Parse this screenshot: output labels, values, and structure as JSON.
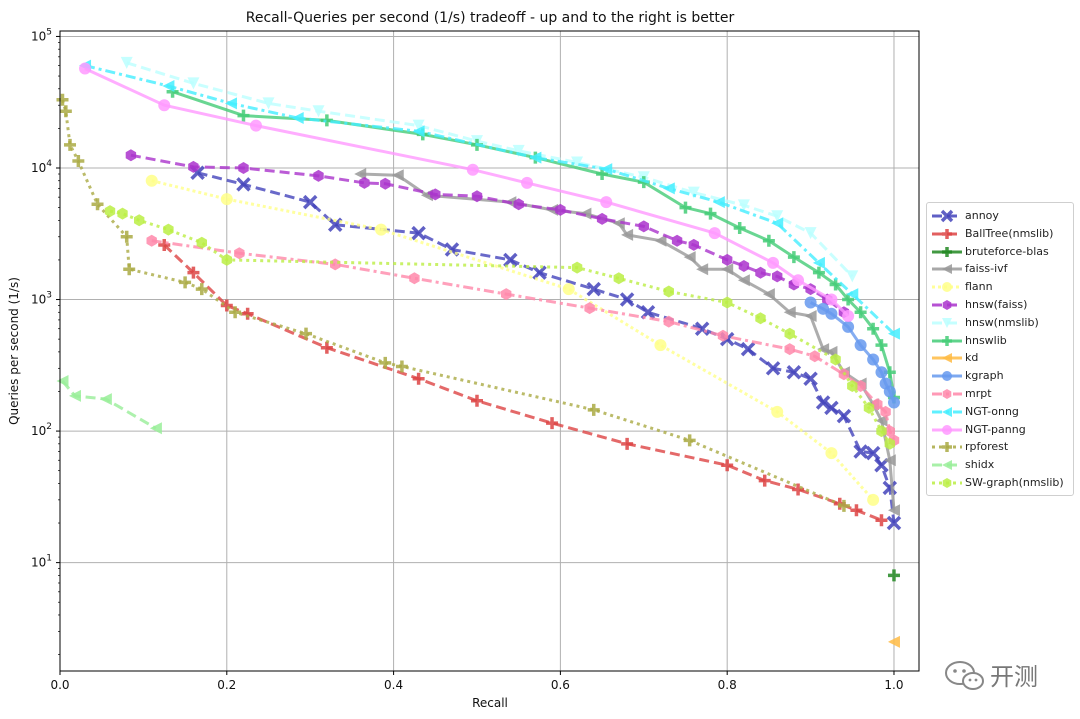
{
  "chart_data": {
    "type": "line",
    "title": "Recall-Queries per second (1/s) tradeoff - up and to the right is better",
    "xlabel": "Recall",
    "ylabel": "Queries per second (1/s)",
    "xlim": [
      0,
      1.03
    ],
    "ylim": [
      1.5,
      110000
    ],
    "yscale": "log",
    "grid": true,
    "legend_position": "right",
    "x_ticks": [
      "0.0",
      "0.2",
      "0.4",
      "0.6",
      "0.8",
      "1.0"
    ],
    "y_ticks": [
      {
        "base": "10",
        "exp": "1",
        "value": 10
      },
      {
        "base": "10",
        "exp": "2",
        "value": 100
      },
      {
        "base": "10",
        "exp": "3",
        "value": 1000
      },
      {
        "base": "10",
        "exp": "4",
        "value": 10000
      },
      {
        "base": "10",
        "exp": "5",
        "value": 100000
      }
    ],
    "series": [
      {
        "name": "annoy",
        "color": "#4444bb",
        "dash": "10,5",
        "marker": "x",
        "x": [
          0.165,
          0.22,
          0.3,
          0.33,
          0.43,
          0.47,
          0.54,
          0.575,
          0.64,
          0.68,
          0.705,
          0.77,
          0.8,
          0.825,
          0.855,
          0.88,
          0.9,
          0.915,
          0.925,
          0.94,
          0.96,
          0.975,
          0.985,
          0.995,
          1.0
        ],
        "y": [
          9200,
          7500,
          5500,
          3700,
          3200,
          2400,
          2000,
          1600,
          1200,
          1000,
          800,
          600,
          500,
          420,
          300,
          280,
          250,
          165,
          150,
          130,
          70,
          68,
          55,
          37,
          20
        ]
      },
      {
        "name": "BallTree(nmslib)",
        "color": "#dd4444",
        "dash": "10,5",
        "marker": "plus",
        "x": [
          0.125,
          0.16,
          0.2,
          0.225,
          0.32,
          0.43,
          0.5,
          0.59,
          0.68,
          0.8,
          0.845,
          0.885,
          0.935,
          0.955,
          0.985
        ],
        "y": [
          2600,
          1600,
          900,
          780,
          430,
          250,
          170,
          115,
          80,
          55,
          42,
          36,
          28,
          25,
          21
        ]
      },
      {
        "name": "bruteforce-blas",
        "color": "#228822",
        "dash": "",
        "marker": "plus",
        "x": [
          1.0
        ],
        "y": [
          8
        ]
      },
      {
        "name": "faiss-ivf",
        "color": "#999999",
        "dash": "",
        "marker": "tri-left",
        "x": [
          0.36,
          0.405,
          0.44,
          0.54,
          0.59,
          0.63,
          0.67,
          0.68,
          0.72,
          0.755,
          0.77,
          0.8,
          0.82,
          0.85,
          0.875,
          0.9,
          0.915,
          0.925,
          0.94,
          0.96,
          0.975,
          0.985,
          0.995,
          1.0
        ],
        "y": [
          9000,
          8800,
          6200,
          5500,
          4800,
          4500,
          3800,
          3100,
          2800,
          2100,
          1700,
          1700,
          1400,
          1100,
          800,
          750,
          420,
          400,
          280,
          230,
          160,
          120,
          60,
          25
        ]
      },
      {
        "name": "flann",
        "color": "#ffff88",
        "dash": "3,3",
        "marker": "circle",
        "x": [
          0.11,
          0.2,
          0.385,
          0.61,
          0.72,
          0.86,
          0.925,
          0.975
        ],
        "y": [
          8000,
          5800,
          3400,
          1200,
          450,
          140,
          68,
          30
        ]
      },
      {
        "name": "hnsw(faiss)",
        "color": "#aa33cc",
        "dash": "10,5",
        "marker": "hex",
        "x": [
          0.085,
          0.16,
          0.22,
          0.31,
          0.365,
          0.39,
          0.45,
          0.5,
          0.55,
          0.6,
          0.65,
          0.7,
          0.74,
          0.76,
          0.8,
          0.82,
          0.84,
          0.86,
          0.88,
          0.9,
          0.92,
          0.94
        ],
        "y": [
          12500,
          10200,
          10000,
          8700,
          7700,
          7600,
          6300,
          6100,
          5300,
          4800,
          4100,
          3600,
          2800,
          2600,
          2000,
          1800,
          1600,
          1500,
          1300,
          1200,
          1000,
          800
        ]
      },
      {
        "name": "hnsw(nmslib)",
        "color": "#bbffff",
        "dash": "10,5",
        "marker": "tri-down",
        "x": [
          0.08,
          0.16,
          0.25,
          0.31,
          0.43,
          0.5,
          0.55,
          0.62,
          0.7,
          0.76,
          0.82,
          0.86,
          0.9,
          0.95
        ],
        "y": [
          63000,
          44000,
          31000,
          27000,
          21000,
          16000,
          13500,
          11000,
          8500,
          6500,
          5200,
          4300,
          3200,
          1500
        ]
      },
      {
        "name": "hnswlib",
        "color": "#44cc77",
        "dash": "",
        "marker": "plus",
        "x": [
          0.135,
          0.22,
          0.32,
          0.435,
          0.5,
          0.57,
          0.65,
          0.7,
          0.75,
          0.78,
          0.815,
          0.85,
          0.88,
          0.91,
          0.93,
          0.945,
          0.96,
          0.975,
          0.985,
          0.995,
          1.0
        ],
        "y": [
          38000,
          25000,
          23000,
          18000,
          15000,
          12000,
          9000,
          7800,
          5000,
          4500,
          3500,
          2800,
          2100,
          1600,
          1300,
          1000,
          800,
          600,
          450,
          280,
          180
        ]
      },
      {
        "name": "kd",
        "color": "#ffbb44",
        "dash": "",
        "marker": "tri-left",
        "x": [
          1.0
        ],
        "y": [
          2.5
        ]
      },
      {
        "name": "kgraph",
        "color": "#6699ee",
        "dash": "",
        "marker": "circle",
        "x": [
          0.9,
          0.915,
          0.925,
          0.945,
          0.96,
          0.975,
          0.985,
          0.99,
          0.995,
          1.0
        ],
        "y": [
          950,
          850,
          780,
          620,
          450,
          350,
          280,
          230,
          200,
          165
        ]
      },
      {
        "name": "mrpt",
        "color": "#ff88aa",
        "dash": "10,4,3,4",
        "marker": "hex",
        "x": [
          0.11,
          0.215,
          0.33,
          0.425,
          0.535,
          0.635,
          0.73,
          0.795,
          0.875,
          0.905,
          0.94,
          0.96,
          0.98,
          0.99,
          0.995,
          1.0
        ],
        "y": [
          2800,
          2250,
          1850,
          1450,
          1100,
          860,
          680,
          530,
          420,
          370,
          270,
          220,
          160,
          140,
          100,
          85
        ]
      },
      {
        "name": "NGT-onng",
        "color": "#44eeff",
        "dash": "10,4,3,4",
        "marker": "tri-left",
        "x": [
          0.03,
          0.13,
          0.205,
          0.285,
          0.43,
          0.57,
          0.655,
          0.73,
          0.79,
          0.86,
          0.91,
          0.95,
          1.0
        ],
        "y": [
          60000,
          42000,
          31000,
          24000,
          19000,
          12000,
          9800,
          7000,
          5500,
          3800,
          1900,
          1100,
          550
        ]
      },
      {
        "name": "NGT-panng",
        "color": "#ff99ff",
        "dash": "",
        "marker": "circle",
        "x": [
          0.03,
          0.125,
          0.235,
          0.495,
          0.56,
          0.655,
          0.785,
          0.855,
          0.885,
          0.925,
          0.945
        ],
        "y": [
          57000,
          30000,
          21000,
          9700,
          7700,
          5500,
          3200,
          1900,
          1400,
          1000,
          750
        ]
      },
      {
        "name": "rpforest",
        "color": "#aaaa44",
        "dash": "3,4",
        "marker": "plus",
        "x": [
          0.003,
          0.007,
          0.012,
          0.022,
          0.045,
          0.08,
          0.083,
          0.15,
          0.17,
          0.21,
          0.295,
          0.39,
          0.41,
          0.64,
          0.755,
          0.94
        ],
        "y": [
          33000,
          27000,
          15000,
          11300,
          5300,
          3000,
          1700,
          1350,
          1200,
          800,
          550,
          330,
          310,
          145,
          85,
          27
        ]
      },
      {
        "name": "shidx",
        "color": "#99ee99",
        "dash": "10,5",
        "marker": "tri-left",
        "x": [
          0.003,
          0.018,
          0.055,
          0.115
        ],
        "y": [
          240,
          185,
          175,
          105
        ]
      },
      {
        "name": "SW-graph(nmslib)",
        "color": "#bbee44",
        "dash": "3,4",
        "marker": "hex",
        "x": [
          0.06,
          0.075,
          0.095,
          0.13,
          0.17,
          0.2,
          0.62,
          0.67,
          0.73,
          0.8,
          0.84,
          0.875,
          0.93,
          0.95,
          0.97,
          0.985,
          0.995
        ],
        "y": [
          4700,
          4500,
          4000,
          3400,
          2700,
          2000,
          1750,
          1450,
          1150,
          950,
          720,
          550,
          350,
          220,
          150,
          100,
          80
        ]
      }
    ]
  },
  "watermark": {
    "text": "开测"
  }
}
